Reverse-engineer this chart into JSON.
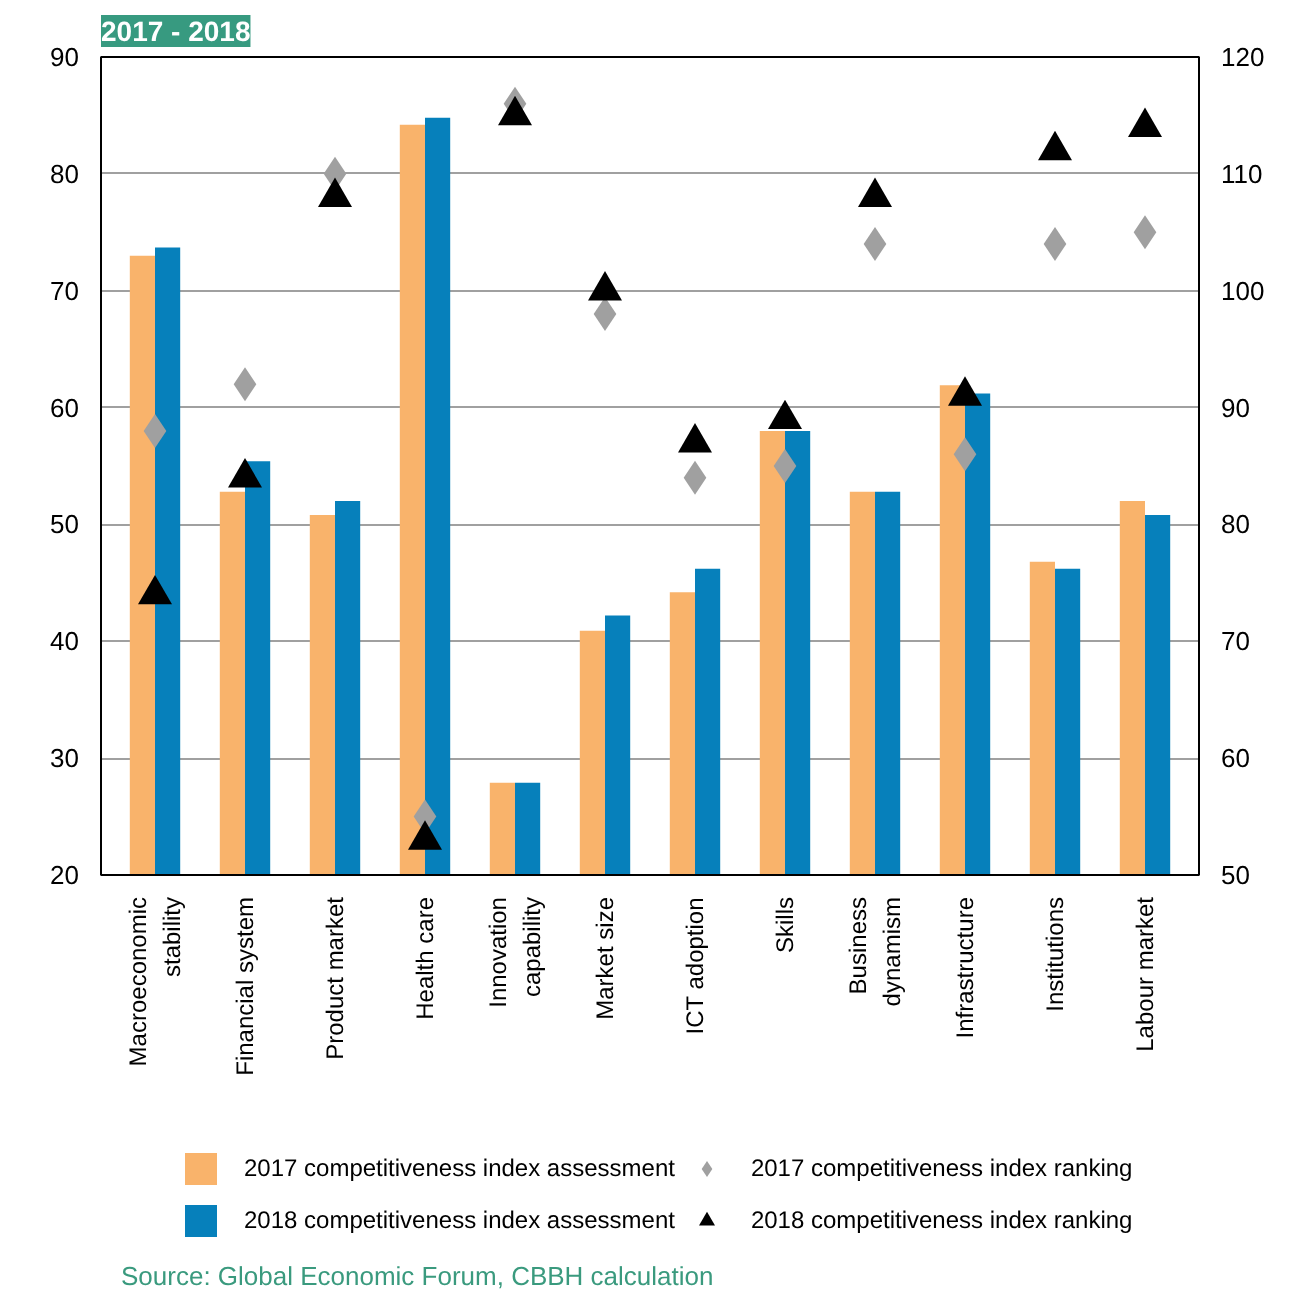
{
  "chart_data": {
    "type": "bar",
    "title": "2017 - 2018",
    "categories": [
      "Macroeconomic\nstability",
      "Financial system",
      "Product market",
      "Health care",
      "Innovation\ncapability",
      "Market size",
      "ICT adoption",
      "Skills",
      "Business\ndynamism",
      "Infrastructure",
      "Institutions",
      "Labour market"
    ],
    "series": [
      {
        "name": "2017 competitiveness index assessment",
        "color": "#f9b36b",
        "values": [
          73.0,
          52.8,
          50.8,
          84.2,
          27.9,
          40.9,
          44.2,
          58.0,
          52.8,
          61.9,
          46.8,
          52.0
        ]
      },
      {
        "name": "2018 competitiveness index assessment",
        "color": "#0680bb",
        "values": [
          73.7,
          55.4,
          52.0,
          84.8,
          27.9,
          42.2,
          46.2,
          58.0,
          52.8,
          61.2,
          46.2,
          50.8
        ]
      },
      {
        "name": "2017 competitiveness index ranking",
        "type": "scatter",
        "marker": "diamond",
        "axis": "y2",
        "color": "#a0a0a0",
        "values": [
          88,
          92,
          110,
          55,
          116,
          98,
          84,
          85,
          104,
          86,
          104,
          105
        ]
      },
      {
        "name": "2018 competitiveness index ranking",
        "type": "scatter",
        "marker": "triangle",
        "axis": "y2",
        "color": "#000000",
        "values": [
          74,
          84,
          108,
          53,
          115,
          100,
          87,
          89,
          108,
          91,
          112,
          114
        ]
      }
    ],
    "ylim": [
      20,
      90
    ],
    "yticks": [
      20,
      30,
      40,
      50,
      60,
      70,
      80,
      90
    ],
    "y2lim": [
      50,
      120
    ],
    "y2ticks": [
      50,
      60,
      70,
      80,
      90,
      100,
      110,
      120
    ],
    "grid": "y",
    "legend": "bottom",
    "annotations": [
      "Source: Global Economic Forum, CBBH calculation"
    ]
  }
}
